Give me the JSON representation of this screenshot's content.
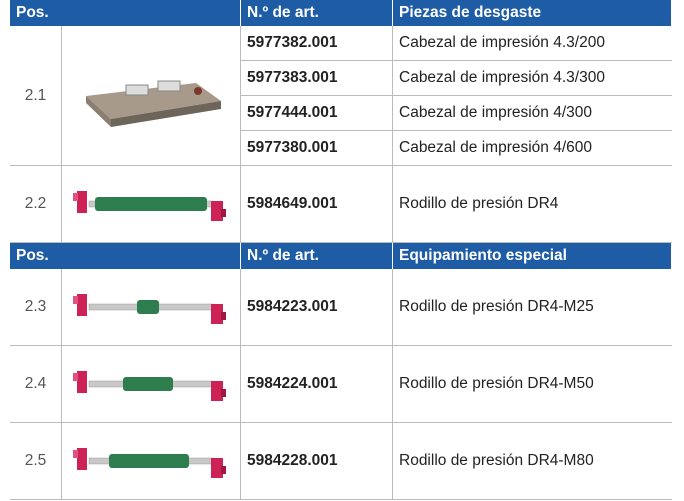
{
  "table": {
    "sections": [
      {
        "header": [
          "Pos.",
          "N.º de art.",
          "Piezas de desgaste"
        ],
        "rows": [
          {
            "pos": "2.1",
            "items": [
              [
                "5977382.001",
                "Cabezal de impresión 4.3/200"
              ],
              [
                "5977383.001",
                "Cabezal de impresión 4.3/300"
              ],
              [
                "5977444.001",
                "Cabezal de impresión 4/300"
              ],
              [
                "5977380.001",
                "Cabezal de impresión 4/600"
              ]
            ]
          },
          {
            "pos": "2.2",
            "items": [
              [
                "5984649.001",
                "Rodillo de presión DR4"
              ]
            ]
          }
        ]
      },
      {
        "header": [
          "Pos.",
          "N.º de art.",
          "Equipamiento especial"
        ],
        "rows": [
          {
            "pos": "2.3",
            "items": [
              [
                "5984223.001",
                "Rodillo de presión DR4-M25"
              ]
            ]
          },
          {
            "pos": "2.4",
            "items": [
              [
                "5984224.001",
                "Rodillo de presión DR4-M50"
              ]
            ]
          },
          {
            "pos": "2.5",
            "items": [
              [
                "5984228.001",
                "Rodillo de presión DR4-M80"
              ]
            ]
          }
        ]
      }
    ]
  }
}
